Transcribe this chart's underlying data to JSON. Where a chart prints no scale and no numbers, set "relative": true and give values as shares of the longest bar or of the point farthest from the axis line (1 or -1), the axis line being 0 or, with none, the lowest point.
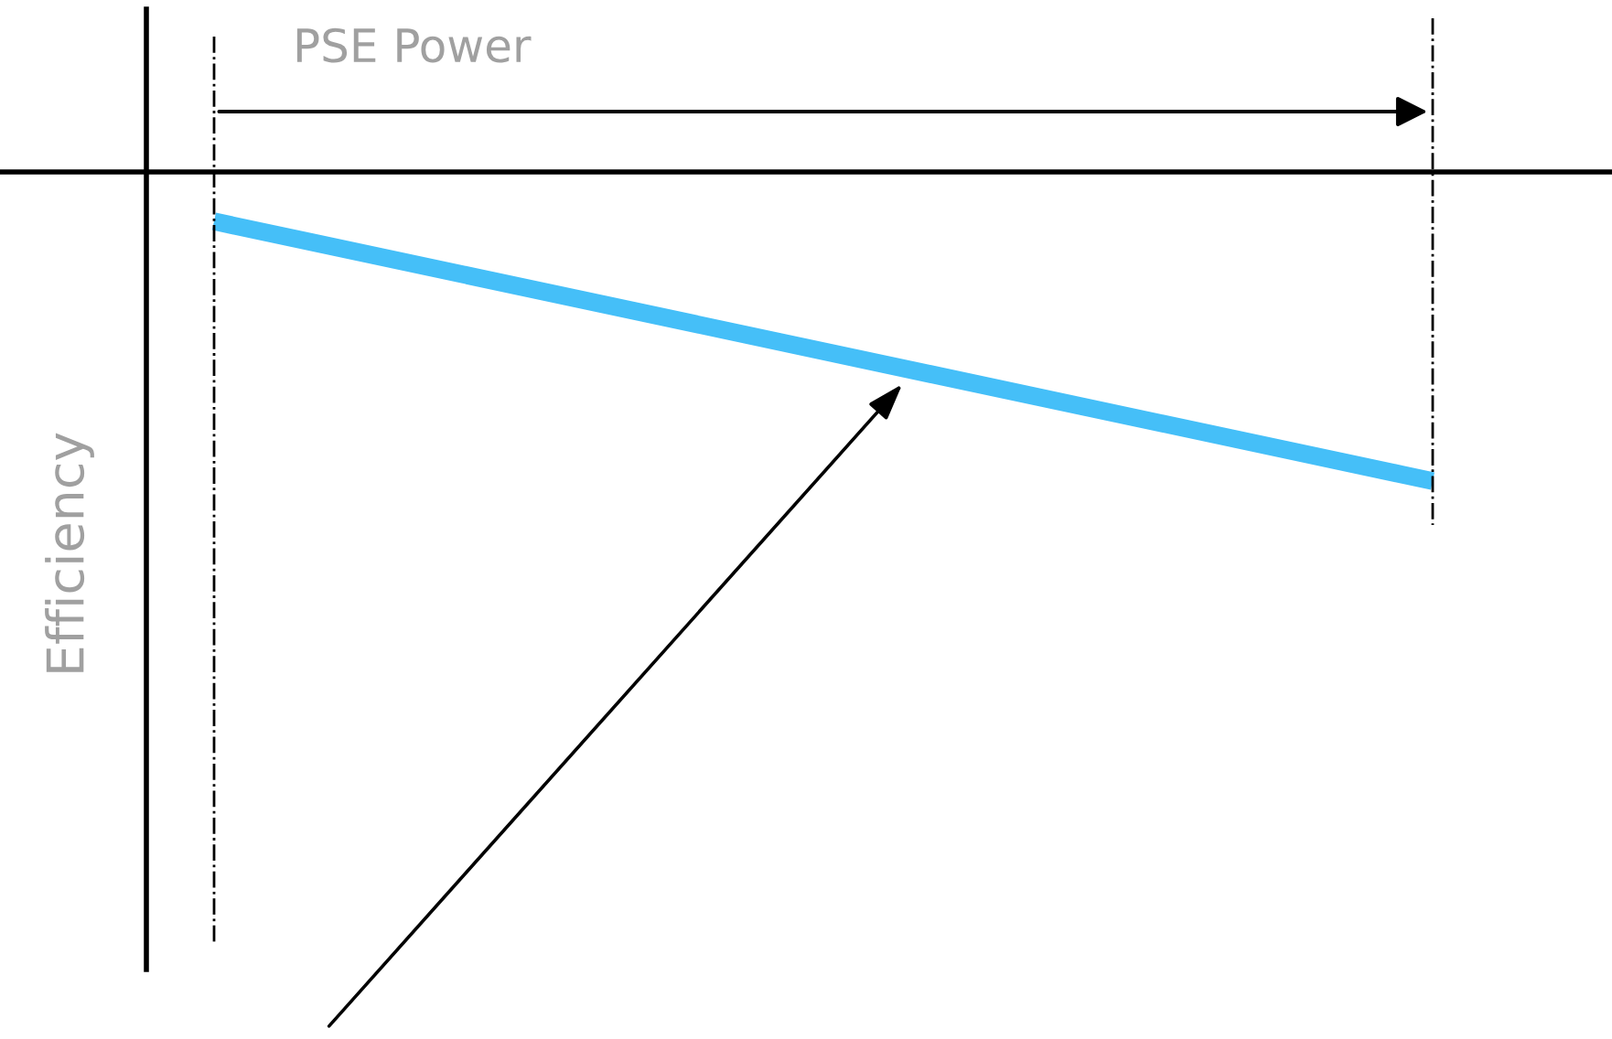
{
  "chart_data": {
    "type": "line",
    "xlabel": "PSE Power",
    "ylabel": "Efficiency",
    "categories": [
      null,
      null
    ],
    "relative": true,
    "series": [
      {
        "color": "#45bff8",
        "values": [
          -0.16,
          -1
        ]
      }
    ]
  }
}
